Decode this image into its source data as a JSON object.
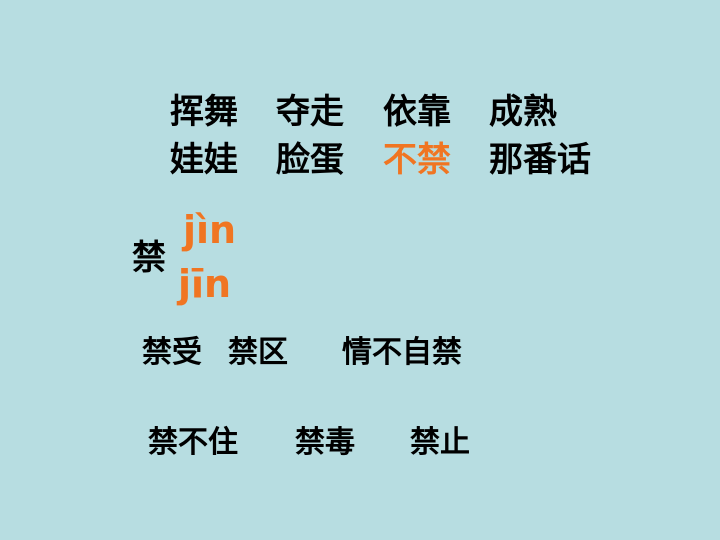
{
  "row1": [
    "挥舞",
    "夺走",
    "依靠",
    "成熟"
  ],
  "row2": [
    "娃娃",
    "脸蛋",
    "不禁",
    "那番话"
  ],
  "char": "禁",
  "pinyin": [
    "jìn",
    "jīn"
  ],
  "row3": [
    "禁受",
    "禁区",
    "情不自禁"
  ],
  "row4": [
    "禁不住",
    "禁毒",
    "禁止"
  ],
  "colors": {
    "background": "#b7dde1",
    "highlight": "#f07522",
    "text": "#000000"
  }
}
